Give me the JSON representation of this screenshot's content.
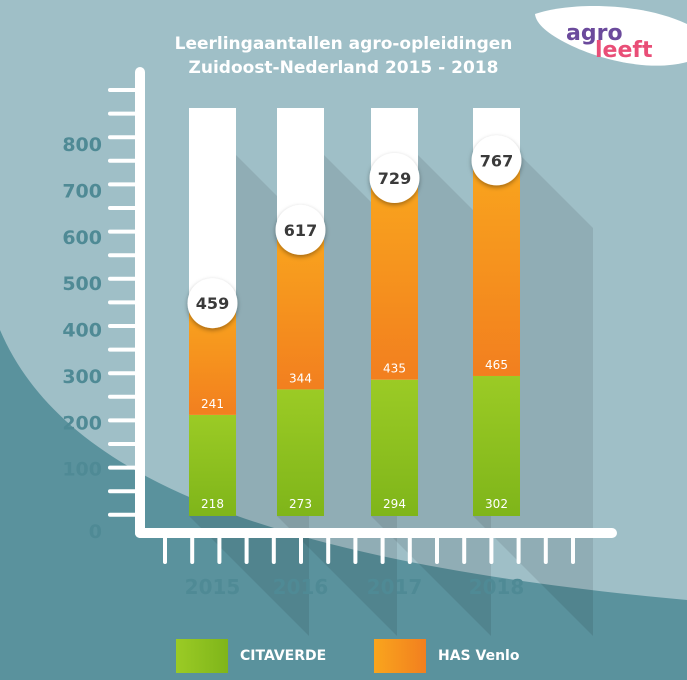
{
  "logo": {
    "line1": "agro",
    "line2": "leeft"
  },
  "chart_data": {
    "type": "bar",
    "stacked": true,
    "title_lines": [
      "Leerlingaantallen agro-opleidingen",
      "Zuidoost-Nederland 2015 - 2018"
    ],
    "categories": [
      "2015",
      "2016",
      "2017",
      "2018"
    ],
    "series": [
      {
        "name": "CITAVERDE",
        "values": [
          218,
          273,
          294,
          302
        ],
        "color": "#8cc11f"
      },
      {
        "name": "HAS Venlo",
        "values": [
          241,
          344,
          435,
          465
        ],
        "color": "#f58a1f"
      }
    ],
    "totals": [
      459,
      617,
      729,
      767
    ],
    "y_ticks": [
      0,
      100,
      200,
      300,
      400,
      500,
      600,
      700,
      800
    ],
    "ylim": [
      0,
      880
    ],
    "legend": "bottom"
  },
  "colors": {
    "background": "#9fbfc7",
    "dark_teal": "#5a929d",
    "axis": "#ffffff",
    "tick_text": "#4f8a95"
  }
}
